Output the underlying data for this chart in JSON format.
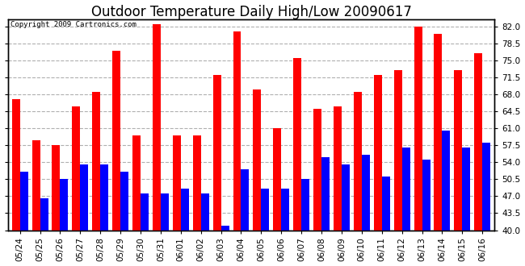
{
  "title": "Outdoor Temperature Daily High/Low 20090617",
  "copyright": "Copyright 2009 Cartronics.com",
  "categories": [
    "05/24",
    "05/25",
    "05/26",
    "05/27",
    "05/28",
    "05/29",
    "05/30",
    "05/31",
    "06/01",
    "06/02",
    "06/03",
    "06/04",
    "06/05",
    "06/06",
    "06/07",
    "06/08",
    "06/09",
    "06/10",
    "06/11",
    "06/12",
    "06/13",
    "06/14",
    "06/15",
    "06/16"
  ],
  "highs": [
    67.0,
    58.5,
    57.5,
    65.5,
    68.5,
    77.0,
    59.5,
    82.5,
    59.5,
    59.5,
    72.0,
    81.0,
    69.0,
    61.0,
    75.5,
    65.0,
    65.5,
    68.5,
    72.0,
    73.0,
    82.0,
    80.5,
    73.0,
    76.5
  ],
  "lows": [
    52.0,
    46.5,
    50.5,
    53.5,
    53.5,
    52.0,
    47.5,
    47.5,
    48.5,
    47.5,
    41.0,
    52.5,
    48.5,
    48.5,
    50.5,
    55.0,
    53.5,
    55.5,
    51.0,
    57.0,
    54.5,
    60.5,
    57.0,
    58.0
  ],
  "high_color": "#ff0000",
  "low_color": "#0000ff",
  "bg_color": "#ffffff",
  "grid_color": "#b0b0b0",
  "ymin": 40.0,
  "ymax": 83.5,
  "yticks": [
    40.0,
    43.5,
    47.0,
    50.5,
    54.0,
    57.5,
    61.0,
    64.5,
    68.0,
    71.5,
    75.0,
    78.5,
    82.0
  ],
  "bar_width": 0.4,
  "title_fontsize": 12,
  "tick_fontsize": 7.5,
  "copyright_fontsize": 6.5
}
